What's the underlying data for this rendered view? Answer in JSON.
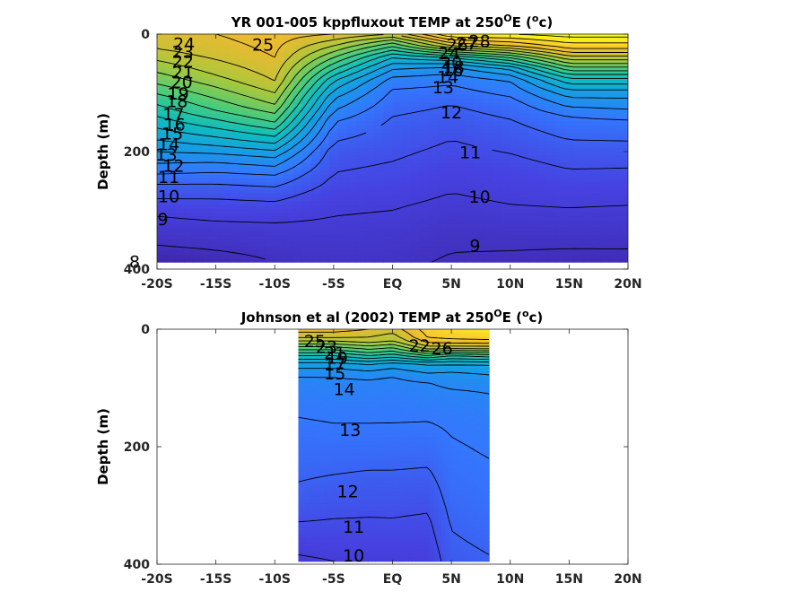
{
  "chart_data": [
    {
      "type": "heatmap",
      "title": "YR 001-005 kppfluxout TEMP at 250",
      "title_sup": "O",
      "title_tail": "E (",
      "title_sup2": "o",
      "title_end": "c)",
      "ylabel": "Depth (m)",
      "xlim": [
        -20,
        20
      ],
      "ylim": [
        0,
        400
      ],
      "y_reversed": true,
      "data_extent": {
        "lat": [
          -20,
          20
        ],
        "depth": [
          0,
          388
        ]
      },
      "xticks": [
        -20,
        -15,
        -10,
        -5,
        0,
        5,
        10,
        15,
        20
      ],
      "xtick_labels": [
        "-20S",
        "-15S",
        "-10S",
        "-5S",
        "EQ",
        "5N",
        "10N",
        "15N",
        "20N"
      ],
      "yticks": [
        0,
        200,
        400
      ],
      "ytick_labels": [
        "0",
        "200",
        "400"
      ],
      "colormap": "parula",
      "clim": [
        8,
        28
      ],
      "profiles": [
        {
          "lat": -20,
          "depth": [
            0,
            25,
            55,
            85,
            110,
            140,
            170,
            200,
            230,
            255,
            280,
            310,
            335,
            360,
            388
          ],
          "temp": [
            24.5,
            24,
            22.5,
            21,
            19.5,
            18,
            16.5,
            15,
            13.5,
            12,
            11,
            10,
            9.5,
            9,
            8
          ]
        },
        {
          "lat": -15,
          "depth": [
            0,
            30,
            70,
            100,
            130,
            160,
            190,
            210,
            235,
            255,
            280,
            310,
            335,
            360,
            388
          ],
          "temp": [
            25,
            24.5,
            23,
            21.5,
            20,
            18,
            16,
            14.5,
            13,
            12,
            11,
            10.2,
            9.6,
            9.2,
            8.5
          ]
        },
        {
          "lat": -10,
          "depth": [
            0,
            40,
            80,
            120,
            150,
            180,
            210,
            240,
            270,
            300,
            330,
            360,
            388
          ],
          "temp": [
            25.5,
            25,
            24,
            22,
            20,
            17.5,
            15,
            13,
            11.5,
            10.5,
            9.8,
            9.4,
            9
          ]
        },
        {
          "lat": -5,
          "depth": [
            0,
            20,
            50,
            80,
            110,
            150,
            200,
            250,
            290,
            330,
            360,
            388
          ],
          "temp": [
            25,
            23,
            20,
            17,
            15,
            13,
            11.5,
            10.8,
            10.2,
            9.8,
            9.5,
            9.2
          ]
        },
        {
          "lat": 0,
          "depth": [
            0,
            15,
            40,
            60,
            80,
            100,
            140,
            200,
            250,
            290,
            330,
            360,
            388
          ],
          "temp": [
            24,
            21,
            17,
            15,
            13.5,
            12.8,
            12,
            11.2,
            10.6,
            10.1,
            9.7,
            9.4,
            9.2
          ]
        },
        {
          "lat": 5,
          "depth": [
            0,
            10,
            20,
            30,
            40,
            50,
            60,
            80,
            120,
            180,
            240,
            300,
            340,
            388
          ],
          "temp": [
            28,
            26,
            24,
            21,
            18,
            16,
            14.5,
            13.2,
            12,
            11,
            10.3,
            9.7,
            9.2,
            8.9
          ]
        },
        {
          "lat": 10,
          "depth": [
            0,
            20,
            40,
            60,
            80,
            120,
            170,
            230,
            290,
            340,
            388
          ],
          "temp": [
            28,
            25,
            20,
            16,
            14,
            12.5,
            11.5,
            10.6,
            10,
            9.3,
            8.8
          ]
        },
        {
          "lat": 15,
          "depth": [
            0,
            25,
            50,
            75,
            100,
            140,
            200,
            260,
            310,
            350,
            388
          ],
          "temp": [
            28.5,
            26,
            22,
            18,
            15.5,
            13,
            11.5,
            10.5,
            9.8,
            9.2,
            8.7
          ]
        },
        {
          "lat": 20,
          "depth": [
            0,
            25,
            50,
            75,
            100,
            150,
            210,
            270,
            320,
            360,
            388
          ],
          "temp": [
            28.5,
            26,
            22,
            18,
            15.5,
            12.8,
            11.3,
            10.3,
            9.6,
            9.1,
            8.6
          ]
        }
      ],
      "contour_levels": [
        8,
        9,
        10,
        11,
        12,
        13,
        14,
        15,
        16,
        17,
        18,
        19,
        20,
        21,
        22,
        23,
        24,
        25,
        26,
        27,
        28
      ],
      "contour_labels": [
        {
          "text": "24",
          "lat": -17.7,
          "depth": 18
        },
        {
          "text": "25",
          "lat": -11.0,
          "depth": 20
        },
        {
          "text": "23",
          "lat": -17.8,
          "depth": 32
        },
        {
          "text": "22",
          "lat": -17.8,
          "depth": 48
        },
        {
          "text": "21",
          "lat": -17.8,
          "depth": 67
        },
        {
          "text": "20",
          "lat": -17.9,
          "depth": 83
        },
        {
          "text": "19",
          "lat": -18.2,
          "depth": 103
        },
        {
          "text": "18",
          "lat": -18.3,
          "depth": 116
        },
        {
          "text": "17",
          "lat": -18.6,
          "depth": 138
        },
        {
          "text": "16",
          "lat": -18.5,
          "depth": 156
        },
        {
          "text": "15",
          "lat": -18.7,
          "depth": 171
        },
        {
          "text": "14",
          "lat": -19.0,
          "depth": 189
        },
        {
          "text": "13",
          "lat": -19.2,
          "depth": 207
        },
        {
          "text": "12",
          "lat": -18.6,
          "depth": 226
        },
        {
          "text": "11",
          "lat": -19.0,
          "depth": 245
        },
        {
          "text": "10",
          "lat": -19.0,
          "depth": 278
        },
        {
          "text": "9",
          "lat": -19.5,
          "depth": 317
        },
        {
          "text": "8",
          "lat": -21.9,
          "depth": 389
        },
        {
          "text": "28",
          "lat": 7.4,
          "depth": 14
        },
        {
          "text": "27",
          "lat": 6.3,
          "depth": 18
        },
        {
          "text": "26",
          "lat": 5.5,
          "depth": 20
        },
        {
          "text": "24",
          "lat": 4.8,
          "depth": 34
        },
        {
          "text": "20",
          "lat": 5.0,
          "depth": 50
        },
        {
          "text": "18",
          "lat": 5.2,
          "depth": 58
        },
        {
          "text": "16",
          "lat": 5.1,
          "depth": 63
        },
        {
          "text": "14",
          "lat": 4.7,
          "depth": 75
        },
        {
          "text": "13",
          "lat": 4.3,
          "depth": 92
        },
        {
          "text": "12",
          "lat": 5.0,
          "depth": 135
        },
        {
          "text": "11",
          "lat": 6.6,
          "depth": 203
        },
        {
          "text": "10",
          "lat": 7.4,
          "depth": 279
        },
        {
          "text": "9",
          "lat": 7.0,
          "depth": 362
        }
      ]
    },
    {
      "type": "heatmap",
      "title": "Johnson et al (2002) TEMP at 250",
      "title_sup": "O",
      "title_tail": "E (",
      "title_sup2": "o",
      "title_end": "c)",
      "ylabel": "Depth (m)",
      "xlim": [
        -20,
        20
      ],
      "ylim": [
        0,
        400
      ],
      "y_reversed": true,
      "data_extent": {
        "lat": [
          -8,
          8.2
        ],
        "depth": [
          0,
          395
        ]
      },
      "xticks": [
        -20,
        -15,
        -10,
        -5,
        0,
        5,
        10,
        15,
        20
      ],
      "xtick_labels": [
        "-20S",
        "-15S",
        "-10S",
        "-5S",
        "EQ",
        "5N",
        "10N",
        "15N",
        "20N"
      ],
      "yticks": [
        0,
        200,
        400
      ],
      "ytick_labels": [
        "0",
        "200",
        "400"
      ],
      "colormap": "parula",
      "clim": [
        8,
        28
      ],
      "profiles": [
        {
          "lat": -8,
          "depth": [
            0,
            15,
            30,
            45,
            60,
            80,
            120,
            170,
            220,
            280,
            340,
            395
          ],
          "temp": [
            25.5,
            24,
            21,
            18,
            15.5,
            14,
            13.3,
            12.8,
            12.4,
            11.8,
            10.8,
            9.8
          ]
        },
        {
          "lat": -5,
          "depth": [
            0,
            15,
            30,
            45,
            60,
            80,
            130,
            180,
            240,
            300,
            360,
            395
          ],
          "temp": [
            25.5,
            24,
            21,
            18,
            15.5,
            14,
            13.3,
            12.8,
            12.1,
            11.3,
            10.5,
            10
          ]
        },
        {
          "lat": -2,
          "depth": [
            0,
            20,
            40,
            60,
            80,
            100,
            150,
            200,
            260,
            320,
            370,
            395
          ],
          "temp": [
            25,
            23.5,
            20,
            16,
            14.2,
            13.6,
            13.1,
            12.6,
            11.7,
            11,
            10.4,
            10.1
          ]
        },
        {
          "lat": 0,
          "depth": [
            0,
            20,
            40,
            60,
            80,
            110,
            160,
            210,
            270,
            330,
            380,
            395
          ],
          "temp": [
            24.5,
            23,
            19.5,
            15.5,
            14,
            13.4,
            13,
            12.4,
            11.6,
            10.9,
            10.3,
            10.1
          ]
        },
        {
          "lat": 3,
          "depth": [
            0,
            15,
            30,
            45,
            60,
            90,
            140,
            200,
            270,
            330,
            395
          ],
          "temp": [
            26.5,
            26,
            24,
            20,
            16,
            14,
            13.2,
            12.5,
            11.5,
            10.8,
            10.2
          ]
        },
        {
          "lat": 5,
          "depth": [
            0,
            15,
            30,
            45,
            60,
            80,
            120,
            150,
            200,
            260,
            330,
            395
          ],
          "temp": [
            27,
            26.3,
            24,
            19,
            16,
            14.5,
            13.6,
            13.2,
            12.9,
            12.6,
            12.1,
            11.6
          ]
        },
        {
          "lat": 8.2,
          "depth": [
            0,
            15,
            30,
            45,
            60,
            90,
            150,
            220,
            290,
            350,
            395
          ],
          "temp": [
            27.5,
            26.5,
            24,
            19.5,
            16,
            14.3,
            13.4,
            13,
            12.7,
            12.3,
            11.9
          ]
        }
      ],
      "contour_levels": [
        10,
        11,
        12,
        13,
        14,
        15,
        16,
        17,
        18,
        19,
        20,
        21,
        22,
        23,
        24,
        25,
        26
      ],
      "contour_labels": [
        {
          "text": "25",
          "lat": -6.6,
          "depth": 22
        },
        {
          "text": "23",
          "lat": -5.6,
          "depth": 32
        },
        {
          "text": "21",
          "lat": -4.9,
          "depth": 42
        },
        {
          "text": "19",
          "lat": -4.7,
          "depth": 50
        },
        {
          "text": "17",
          "lat": -4.9,
          "depth": 62
        },
        {
          "text": "15",
          "lat": -4.9,
          "depth": 77
        },
        {
          "text": "14",
          "lat": -4.1,
          "depth": 104
        },
        {
          "text": "22",
          "lat": 2.3,
          "depth": 30
        },
        {
          "text": "26",
          "lat": 4.2,
          "depth": 34
        },
        {
          "text": "13",
          "lat": -3.6,
          "depth": 173
        },
        {
          "text": "12",
          "lat": -3.8,
          "depth": 278
        },
        {
          "text": "11",
          "lat": -3.3,
          "depth": 338
        },
        {
          "text": "10",
          "lat": -3.3,
          "depth": 387
        }
      ]
    }
  ]
}
